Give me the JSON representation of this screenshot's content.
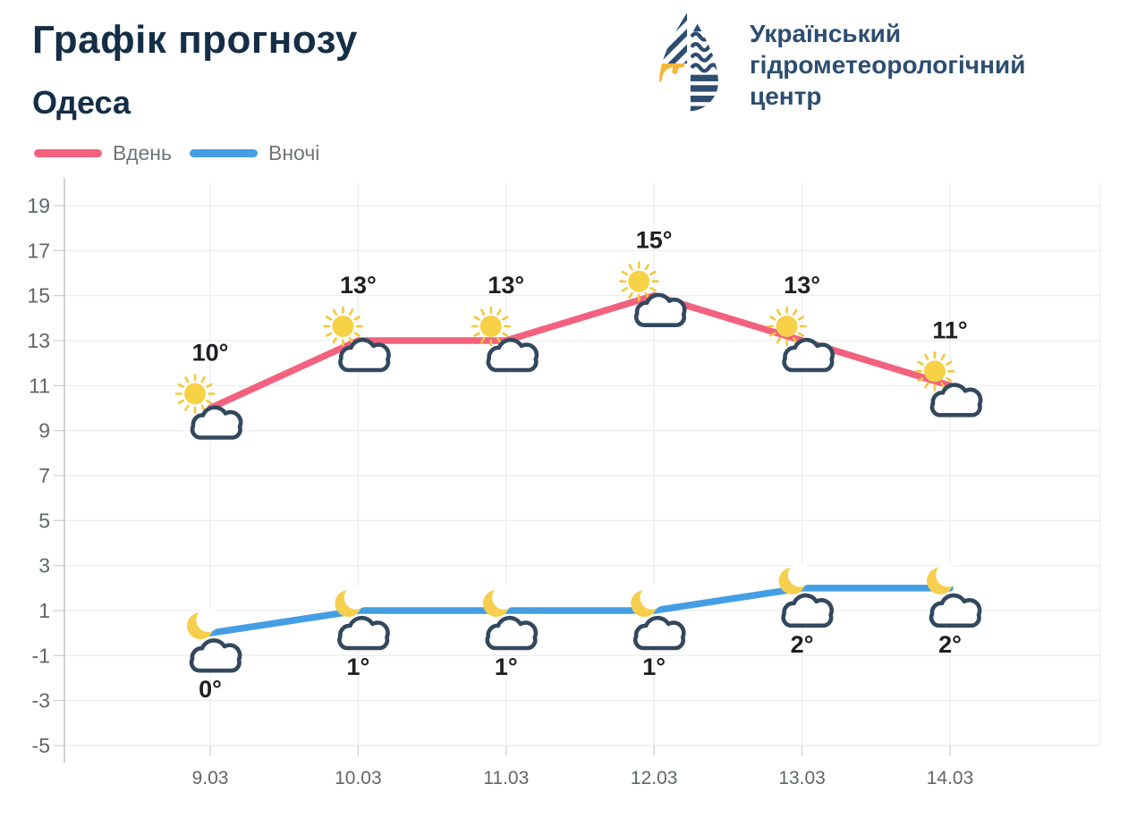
{
  "header": {
    "title": "Графік прогнозу",
    "subtitle": "Одеса",
    "logo": {
      "line1": "Український",
      "line2": "гідрометеорологічний",
      "line3": "центр"
    }
  },
  "legend": [
    {
      "label": "Вдень",
      "color": "#f2627e"
    },
    {
      "label": "Вночі",
      "color": "#459ee3"
    }
  ],
  "chart_data": {
    "type": "line",
    "title": "Графік прогнозу",
    "subtitle": "Одеса",
    "categories": [
      "9.03",
      "10.03",
      "11.03",
      "12.03",
      "13.03",
      "14.03"
    ],
    "series": [
      {
        "name": "Вдень",
        "color": "#f2627e",
        "icon": "sun-cloud",
        "label_position": "above",
        "values": [
          10,
          13,
          13,
          15,
          13,
          11
        ],
        "point_labels": [
          "10°",
          "13°",
          "13°",
          "15°",
          "13°",
          "11°"
        ]
      },
      {
        "name": "Вночі",
        "color": "#459ee3",
        "icon": "moon-cloud",
        "label_position": "below",
        "values": [
          0,
          1,
          1,
          1,
          2,
          2
        ],
        "point_labels": [
          "0°",
          "1°",
          "1°",
          "1°",
          "2°",
          "2°"
        ]
      }
    ],
    "unit": "°",
    "ylim": [
      -5,
      19
    ],
    "yticks": [
      19,
      17,
      15,
      13,
      11,
      9,
      7,
      5,
      3,
      1,
      -1,
      -3,
      -5
    ],
    "grid": true,
    "legend_position": "top-left"
  },
  "colors": {
    "title": "#152e47",
    "logo_navy": "#2d4e71",
    "logo_yellow": "#f5b73b",
    "axis_label": "#61666a",
    "point_label": "#1e1f22",
    "grid_line": "#ececec",
    "axis_line": "#c3c6c9",
    "tick_line": "#cfd2d4",
    "sun_fill": "#f7d247",
    "sun_ray": "#f0c93c",
    "moon_fill": "#f7ce4e",
    "cloud_stroke": "#32485e",
    "cloud_fill": "#ffffff"
  }
}
